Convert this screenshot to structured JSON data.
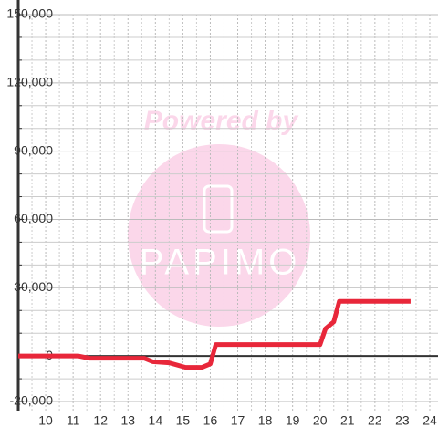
{
  "chart_data": {
    "type": "line",
    "watermark": {
      "title": "Powered by",
      "brand": "PAPIMO"
    },
    "x": [
      9.0,
      11.2,
      11.6,
      13.6,
      13.9,
      14.5,
      14.8,
      15.1,
      15.7,
      16.0,
      16.2,
      20.0,
      20.2,
      20.5,
      20.7,
      23.3
    ],
    "series": [
      {
        "color": "#e8273a",
        "values": [
          0,
          0,
          -1000,
          -1000,
          -2500,
          -3000,
          -4000,
          -5000,
          -5000,
          -3500,
          5000,
          5000,
          12000,
          15000,
          24000,
          24000
        ]
      }
    ],
    "xlim": [
      9,
      24.3
    ],
    "xticks": [
      10,
      11,
      12,
      13,
      14,
      15,
      16,
      17,
      18,
      19,
      20,
      21,
      22,
      23,
      24
    ],
    "xminor": [
      9.5,
      10.5,
      11.5,
      12.5,
      13.5,
      14.5,
      15.5,
      16.5,
      17.5,
      18.5,
      19.5,
      20.5,
      21.5,
      22.5,
      23.5
    ],
    "ylim": [
      -24000,
      150000
    ],
    "yticks": [
      {
        "value": -20000,
        "label": "-20,000"
      },
      0,
      {
        "value": 30000,
        "label": "30,000"
      },
      {
        "value": 60000,
        "label": "60,000"
      },
      {
        "value": 90000,
        "label": "90,000"
      },
      {
        "value": 120000,
        "label": "120,000"
      },
      {
        "value": 150000,
        "label": "150,000"
      }
    ],
    "yminor": [
      -10000,
      10000,
      20000,
      40000,
      50000,
      70000,
      80000,
      100000,
      110000,
      130000,
      140000
    ],
    "grid": true
  }
}
